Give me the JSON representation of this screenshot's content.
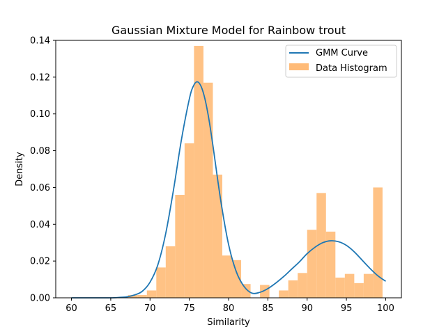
{
  "chart_data": {
    "type": "bar",
    "title": "Gaussian Mixture Model for Rainbow trout",
    "xlabel": "Similarity",
    "ylabel": "Density",
    "xlim": [
      58,
      102
    ],
    "ylim": [
      0,
      0.14
    ],
    "xticks": [
      60,
      65,
      70,
      75,
      80,
      85,
      90,
      95,
      100
    ],
    "yticks": [
      0.0,
      0.02,
      0.04,
      0.06,
      0.08,
      0.1,
      0.12,
      0.14
    ],
    "xtick_labels": [
      "60",
      "65",
      "70",
      "75",
      "80",
      "85",
      "90",
      "95",
      "100"
    ],
    "ytick_labels": [
      "0.00",
      "0.02",
      "0.04",
      "0.06",
      "0.08",
      "0.10",
      "0.12",
      "0.14"
    ],
    "grid": false,
    "legend_position": "top-right",
    "series": [
      {
        "name": "GMM Curve",
        "type": "line",
        "color": "#1f77b4",
        "x": [
          60,
          61,
          62,
          63,
          64,
          65,
          66,
          67,
          68,
          69,
          70,
          71,
          72,
          73,
          74,
          75,
          75.5,
          76,
          76.5,
          77,
          77.5,
          78,
          79,
          80,
          81,
          82,
          83,
          84,
          85,
          86,
          87,
          88,
          89,
          90,
          91,
          92,
          93,
          94,
          95,
          96,
          97,
          98,
          99,
          100
        ],
        "y": [
          0.0,
          0.0,
          0.0,
          0.0,
          0.0,
          0.0,
          0.0002,
          0.0005,
          0.0015,
          0.0035,
          0.0085,
          0.018,
          0.035,
          0.059,
          0.086,
          0.108,
          0.115,
          0.1175,
          0.115,
          0.108,
          0.097,
          0.083,
          0.053,
          0.029,
          0.014,
          0.006,
          0.0025,
          0.003,
          0.005,
          0.008,
          0.0115,
          0.0155,
          0.0195,
          0.024,
          0.0275,
          0.03,
          0.031,
          0.0305,
          0.0285,
          0.025,
          0.0205,
          0.016,
          0.012,
          0.009
        ]
      },
      {
        "name": "Data Histogram",
        "type": "bar",
        "color": "#ffbb78",
        "bin_edges": [
          66.0,
          67.2,
          68.4,
          69.6,
          70.8,
          72.0,
          73.2,
          74.4,
          75.6,
          76.8,
          78.0,
          79.2,
          80.4,
          81.6,
          82.8,
          84.0,
          85.2,
          86.4,
          87.6,
          88.8,
          90.0,
          91.2,
          92.4,
          93.6,
          94.8,
          96.0,
          97.2,
          98.4,
          99.6,
          100.0
        ],
        "values": [
          0.0005,
          0.0015,
          0.0015,
          0.004,
          0.0165,
          0.028,
          0.056,
          0.084,
          0.137,
          0.117,
          0.067,
          0.023,
          0.0205,
          0.0075,
          0.0,
          0.007,
          0.0,
          0.004,
          0.0095,
          0.0135,
          0.037,
          0.057,
          0.036,
          0.011,
          0.013,
          0.008,
          0.013,
          0.06,
          0.0
        ]
      }
    ]
  }
}
